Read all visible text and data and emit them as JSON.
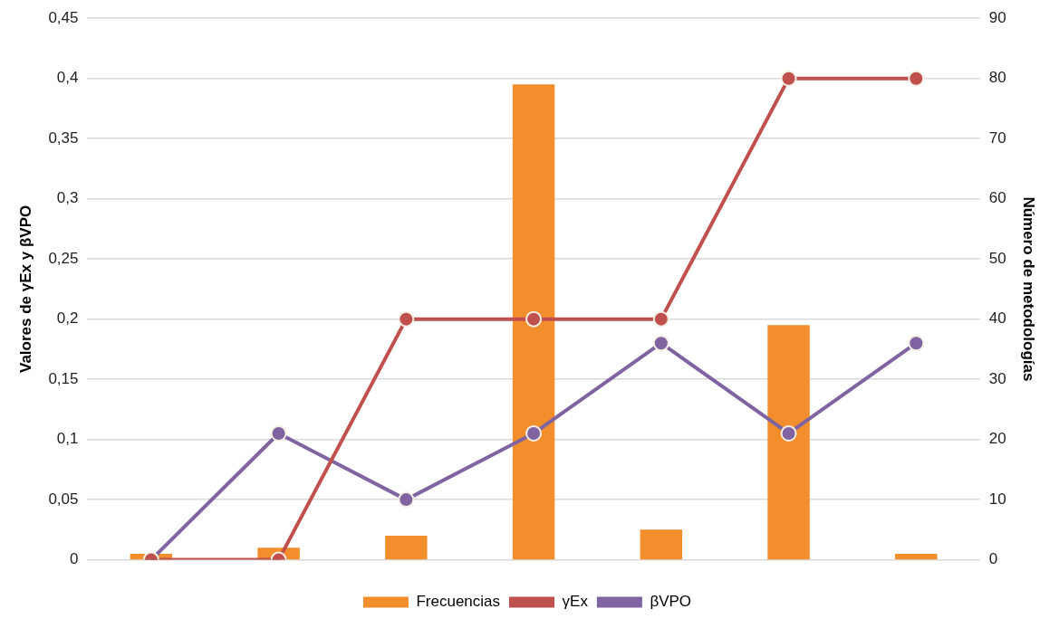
{
  "chart_data": {
    "type": "bar",
    "ylabel": "Valores de γEx y βVPO",
    "y2label": "Número de metodologías",
    "categories": [
      null,
      null,
      null,
      null,
      null,
      null,
      null
    ],
    "series": [
      {
        "name": "Frecuencias",
        "axis": "y2",
        "color": "#f28e2b",
        "values": [
          1,
          2,
          4,
          79,
          5,
          39,
          1
        ]
      },
      {
        "name": "γEx",
        "type": "line",
        "color": "#c0504d",
        "values": [
          0,
          0,
          0.2,
          0.2,
          0.2,
          0.4,
          0.4
        ]
      },
      {
        "name": "βVPO",
        "type": "line",
        "color": "#8064a2",
        "values": [
          0,
          0.105,
          0.05,
          0.105,
          0.18,
          0.105,
          0.18
        ]
      }
    ],
    "ylim": [
      0,
      0.45
    ],
    "yticks": [
      0,
      {
        "value": 0.05,
        "label": "0,05"
      },
      {
        "value": 0.1,
        "label": "0,1"
      },
      {
        "value": 0.15,
        "label": "0,15"
      },
      {
        "value": 0.2,
        "label": "0,2"
      },
      {
        "value": 0.25,
        "label": "0,25"
      },
      {
        "value": 0.3,
        "label": "0,3"
      },
      {
        "value": 0.35,
        "label": "0,35"
      },
      {
        "value": 0.4,
        "label": "0,4"
      },
      {
        "value": 0.45,
        "label": "0,45"
      }
    ],
    "y2lim": [
      0,
      90
    ],
    "y2ticks": [
      0,
      10,
      20,
      30,
      40,
      50,
      60,
      70,
      80,
      90
    ],
    "grid": "y",
    "legend": "bottom",
    "marker": "circle",
    "line_style": "solid"
  }
}
